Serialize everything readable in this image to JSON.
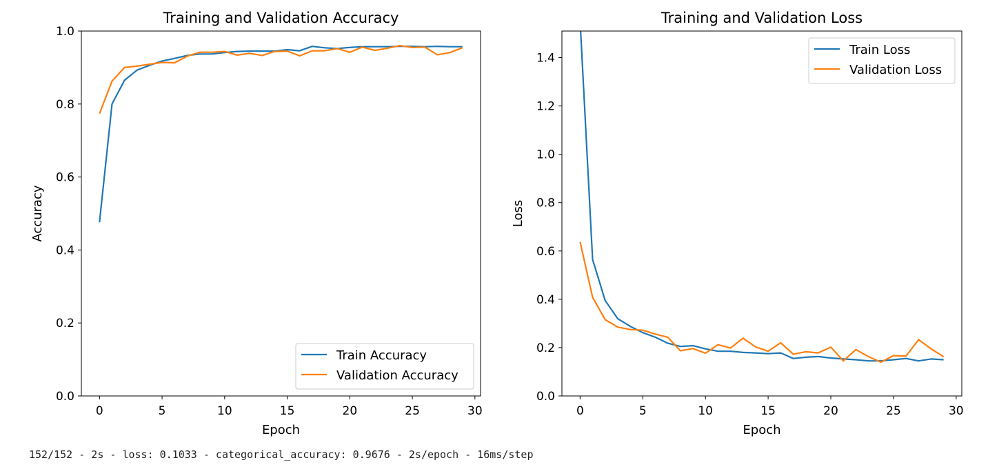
{
  "console_output": "152/152 - 2s - loss: 0.1033 - categorical_accuracy: 0.9676 - 2s/epoch - 16ms/step",
  "colors": {
    "train": "#1f77b4",
    "validation": "#ff7f0e"
  },
  "chart_data": [
    {
      "type": "line",
      "title": "Training and Validation Accuracy",
      "xlabel": "Epoch",
      "ylabel": "Accuracy",
      "xlim": [
        -1.45,
        30.45
      ],
      "ylim": [
        0,
        1.0
      ],
      "xticks": [
        0,
        5,
        10,
        15,
        20,
        25,
        30
      ],
      "xtick_labels": [
        "0",
        "5",
        "10",
        "15",
        "20",
        "25",
        "30"
      ],
      "yticks": [
        0,
        0.2,
        0.4,
        0.6,
        0.8,
        1.0
      ],
      "ytick_labels": [
        "0.0",
        "0.2",
        "0.4",
        "0.6",
        "0.8",
        "1.0"
      ],
      "legend_position": "lower-right",
      "grid": false,
      "x": [
        0,
        1,
        2,
        3,
        4,
        5,
        6,
        7,
        8,
        9,
        10,
        11,
        12,
        13,
        14,
        15,
        16,
        17,
        18,
        19,
        20,
        21,
        22,
        23,
        24,
        25,
        26,
        27,
        28,
        29
      ],
      "series": [
        {
          "name": "Train Accuracy",
          "color": "#1f77b4",
          "values": [
            0.476,
            0.8,
            0.865,
            0.893,
            0.906,
            0.918,
            0.925,
            0.933,
            0.937,
            0.937,
            0.941,
            0.944,
            0.945,
            0.945,
            0.945,
            0.949,
            0.946,
            0.958,
            0.954,
            0.952,
            0.955,
            0.957,
            0.957,
            0.957,
            0.958,
            0.958,
            0.957,
            0.958,
            0.957,
            0.957
          ]
        },
        {
          "name": "Validation Accuracy",
          "color": "#ff7f0e",
          "values": [
            0.774,
            0.863,
            0.9,
            0.904,
            0.909,
            0.914,
            0.913,
            0.931,
            0.942,
            0.942,
            0.944,
            0.934,
            0.939,
            0.933,
            0.944,
            0.945,
            0.932,
            0.946,
            0.946,
            0.952,
            0.942,
            0.956,
            0.947,
            0.953,
            0.96,
            0.955,
            0.956,
            0.935,
            0.941,
            0.954
          ]
        }
      ]
    },
    {
      "type": "line",
      "title": "Training and Validation Loss",
      "xlabel": "Epoch",
      "ylabel": "Loss",
      "xlim": [
        -1.45,
        30.45
      ],
      "ylim": [
        0,
        1.51
      ],
      "xticks": [
        0,
        5,
        10,
        15,
        20,
        25,
        30
      ],
      "xtick_labels": [
        "0",
        "5",
        "10",
        "15",
        "20",
        "25",
        "30"
      ],
      "yticks": [
        0,
        0.2,
        0.4,
        0.6,
        0.8,
        1.0,
        1.2,
        1.4
      ],
      "ytick_labels": [
        "0.0",
        "0.2",
        "0.4",
        "0.6",
        "0.8",
        "1.0",
        "1.2",
        "1.4"
      ],
      "legend_position": "upper-right",
      "grid": false,
      "x": [
        0,
        1,
        2,
        3,
        4,
        5,
        6,
        7,
        8,
        9,
        10,
        11,
        12,
        13,
        14,
        15,
        16,
        17,
        18,
        19,
        20,
        21,
        22,
        23,
        24,
        25,
        26,
        27,
        28,
        29
      ],
      "series": [
        {
          "name": "Train Loss",
          "color": "#1f77b4",
          "values": [
            1.55,
            0.565,
            0.395,
            0.32,
            0.288,
            0.262,
            0.243,
            0.218,
            0.205,
            0.208,
            0.195,
            0.185,
            0.185,
            0.18,
            0.178,
            0.175,
            0.178,
            0.155,
            0.16,
            0.163,
            0.157,
            0.153,
            0.15,
            0.145,
            0.145,
            0.15,
            0.155,
            0.145,
            0.153,
            0.15
          ]
        },
        {
          "name": "Validation Loss",
          "color": "#ff7f0e",
          "values": [
            0.637,
            0.408,
            0.316,
            0.285,
            0.275,
            0.272,
            0.256,
            0.243,
            0.187,
            0.196,
            0.177,
            0.212,
            0.198,
            0.239,
            0.203,
            0.185,
            0.22,
            0.173,
            0.183,
            0.178,
            0.202,
            0.145,
            0.192,
            0.163,
            0.14,
            0.167,
            0.165,
            0.233,
            0.195,
            0.162
          ]
        }
      ]
    }
  ]
}
